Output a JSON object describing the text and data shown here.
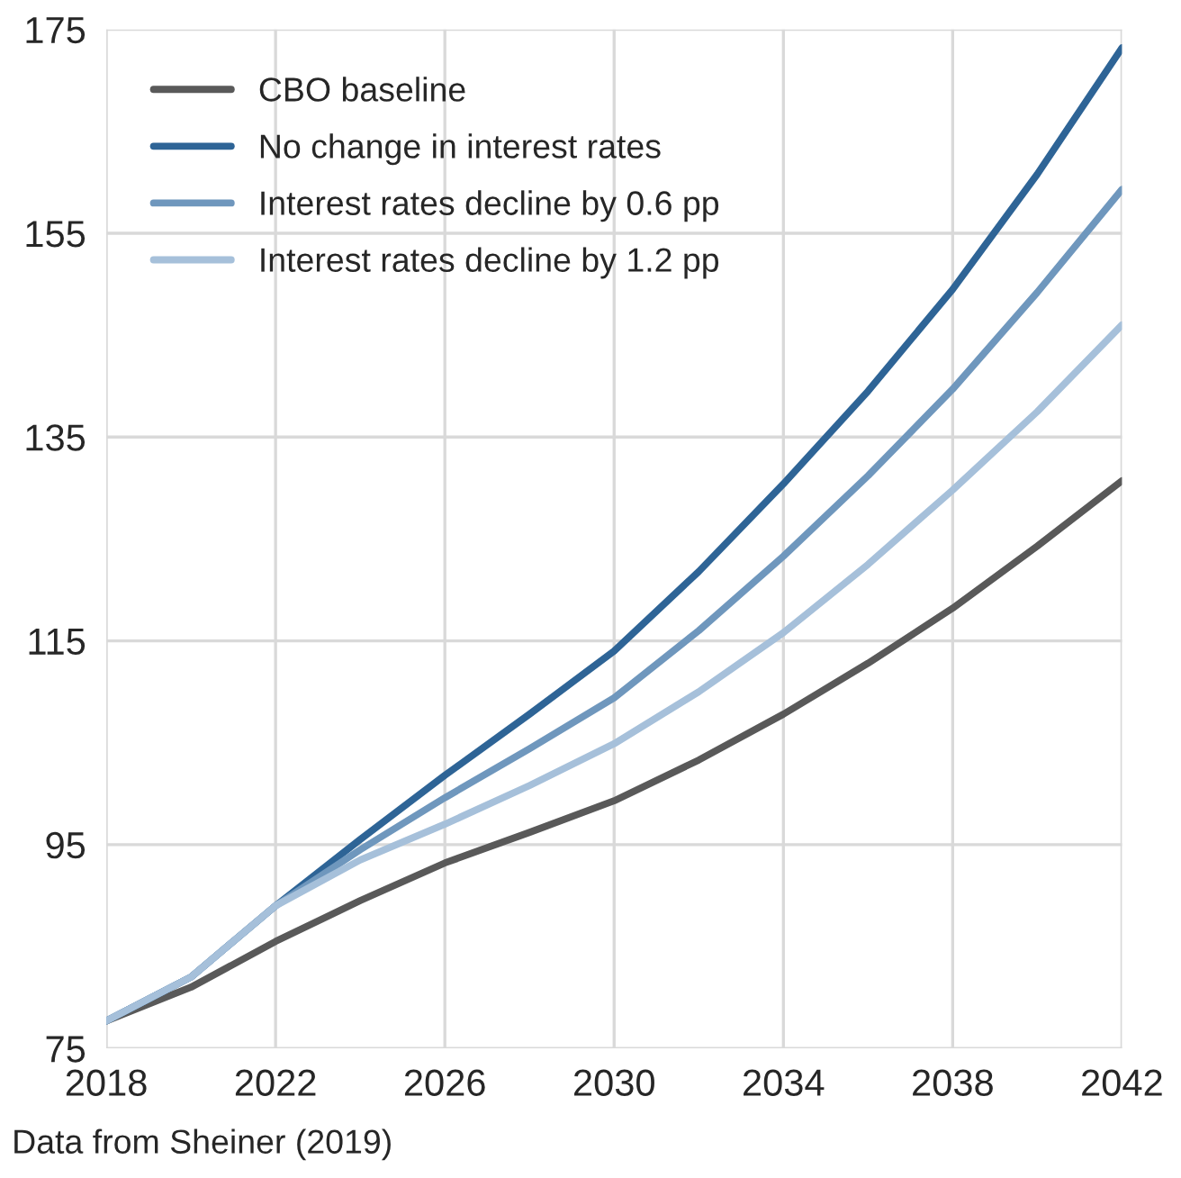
{
  "chart_data": {
    "type": "line",
    "x": [
      2018,
      2020,
      2022,
      2024,
      2026,
      2028,
      2030,
      2032,
      2034,
      2036,
      2038,
      2040,
      2042
    ],
    "series": [
      {
        "name": "CBO baseline",
        "color": "#595959",
        "values": [
          77.7,
          81,
          85.5,
          89.5,
          93.2,
          96.2,
          99.3,
          103.3,
          107.8,
          112.8,
          118.2,
          124.3,
          130.7
        ]
      },
      {
        "name": "No change in interest rates",
        "color": "#2e6496",
        "values": [
          77.7,
          82,
          89,
          95.5,
          101.8,
          107.8,
          114,
          121.8,
          130.4,
          139.5,
          149.5,
          160.8,
          173.2
        ]
      },
      {
        "name": "Interest rates decline by 0.6 pp",
        "color": "#6f97bd",
        "values": [
          77.7,
          82,
          89,
          94.5,
          99.6,
          104.4,
          109.4,
          116,
          123.3,
          131.2,
          139.7,
          149.2,
          159.3
        ]
      },
      {
        "name": "Interest rates decline by 1.2 pp",
        "color": "#a6c0da",
        "values": [
          77.7,
          82,
          89,
          93.5,
          97,
          100.8,
          104.9,
          110,
          115.8,
          122.5,
          129.8,
          137.5,
          146
        ]
      }
    ],
    "xlim": [
      2018,
      2042
    ],
    "xticks": [
      2018,
      2022,
      2026,
      2030,
      2034,
      2038,
      2042
    ],
    "ylim": [
      75,
      175
    ],
    "yticks": [
      75,
      95,
      115,
      135,
      155,
      175
    ],
    "grid": true,
    "legend": "top left",
    "annotations": [
      "Data from Sheiner (2019)"
    ]
  }
}
